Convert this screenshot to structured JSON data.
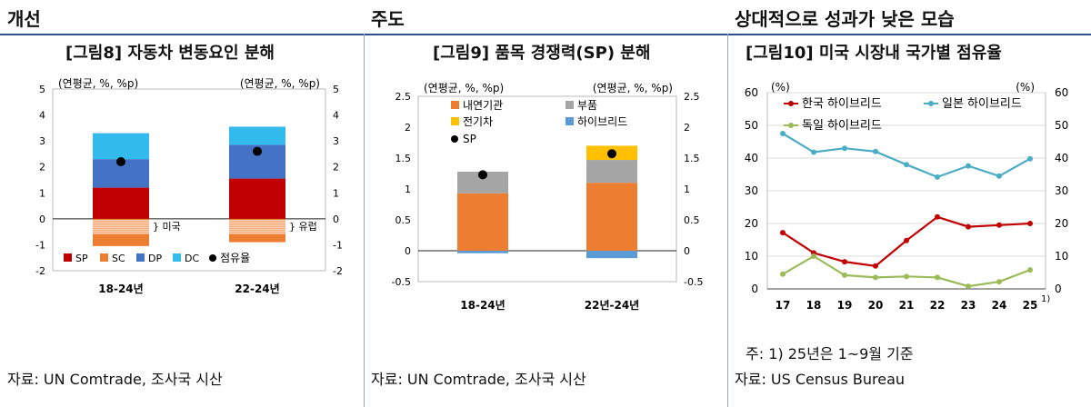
{
  "header": {
    "left": "개선",
    "center": "주도",
    "right": "상대적으로 성과가 낮은 모습"
  },
  "panels": [
    {
      "title": "[그림8] 자동차 변동요인 분해",
      "source": "자료: UN Comtrade, 조사국 시산"
    },
    {
      "title": "[그림9] 품목 경쟁력(SP) 분해",
      "source": "자료: UN Comtrade, 조사국 시산"
    },
    {
      "title": "[그림10] 미국 시장내 국가별 점유율",
      "note": "주: 1) 25년은 1~9월 기준",
      "source": "자료: US Census Bureau"
    }
  ],
  "chart_data": [
    {
      "type": "bar",
      "stacked": true,
      "unit_label": "(연평균, %, %p)",
      "unit_label_right": "(연평균, %, %p)",
      "categories": [
        "18-24년",
        "22-24년"
      ],
      "series": [
        {
          "name": "SP",
          "values": [
            1.2,
            1.55
          ],
          "color": "#c00000"
        },
        {
          "name": "SC",
          "values": [
            -1.05,
            -0.9
          ],
          "color": "#ed7d31"
        },
        {
          "name": "DP",
          "values": [
            1.1,
            1.3
          ],
          "color": "#4472c4"
        },
        {
          "name": "DC",
          "values": [
            1.0,
            0.7
          ],
          "color": "#33bbee"
        }
      ],
      "points": {
        "name": "점유율",
        "values": [
          2.2,
          2.6
        ],
        "color": "#000000"
      },
      "annotations": [
        "미국",
        "유럽"
      ],
      "ylim": [
        -2,
        5
      ],
      "yticks": [
        "5",
        "4",
        "3",
        "2",
        "1",
        "0",
        "-1",
        "-2"
      ],
      "y2ticks": [
        "5",
        "4",
        "3",
        "2",
        "1",
        "0",
        "-1",
        "-2"
      ],
      "legend_position": "bottom"
    },
    {
      "type": "bar",
      "stacked": true,
      "unit_label": "(연평균, %, %p)",
      "unit_label_right": "(연평균, %, %p)",
      "categories": [
        "18-24년",
        "22년-24년"
      ],
      "series": [
        {
          "name": "내연기관",
          "values": [
            0.93,
            1.1
          ],
          "color": "#ed7d31"
        },
        {
          "name": "부품",
          "values": [
            0.35,
            0.37
          ],
          "color": "#a5a5a5"
        },
        {
          "name": "전기차",
          "values": [
            0.0,
            0.23
          ],
          "color": "#ffc000"
        },
        {
          "name": "하이브리드",
          "values": [
            -0.04,
            -0.12
          ],
          "color": "#5b9bd5"
        }
      ],
      "points": {
        "name": "SP",
        "values": [
          1.23,
          1.57
        ],
        "color": "#000000"
      },
      "ylim": [
        -0.5,
        2.5
      ],
      "yticks": [
        "2.5",
        "2",
        "1.5",
        "1",
        "0.5",
        "0",
        "-0.5"
      ],
      "y2ticks": [
        "2.5",
        "2",
        "1.5",
        "1",
        "0.5",
        "0",
        "-0.5"
      ],
      "legend_position": "top"
    },
    {
      "type": "line",
      "unit_label": "(%)",
      "unit_label_right": "(%)",
      "x": [
        "17",
        "18",
        "19",
        "20",
        "21",
        "22",
        "23",
        "24",
        "25"
      ],
      "x_footnote": "1)",
      "series": [
        {
          "name": "한국 하이브리드",
          "values": [
            17.2,
            11.0,
            8.3,
            7.0,
            14.8,
            22.0,
            19.0,
            19.5,
            20.0
          ],
          "color": "#c00000"
        },
        {
          "name": "일본 하이브리드",
          "values": [
            47.5,
            41.8,
            43.0,
            42.0,
            38.0,
            34.2,
            37.6,
            34.5,
            39.8
          ],
          "color": "#4bacc6"
        },
        {
          "name": "독일 하이브리드",
          "values": [
            4.5,
            10.0,
            4.2,
            3.5,
            3.8,
            3.5,
            0.8,
            2.2,
            5.8
          ],
          "color": "#9bbb59"
        }
      ],
      "ylim": [
        0,
        60
      ],
      "yticks": [
        "60",
        "50",
        "40",
        "30",
        "20",
        "10",
        "0"
      ],
      "y2ticks": [
        "60",
        "50",
        "40",
        "30",
        "20",
        "10",
        "0"
      ],
      "legend_position": "top"
    }
  ]
}
